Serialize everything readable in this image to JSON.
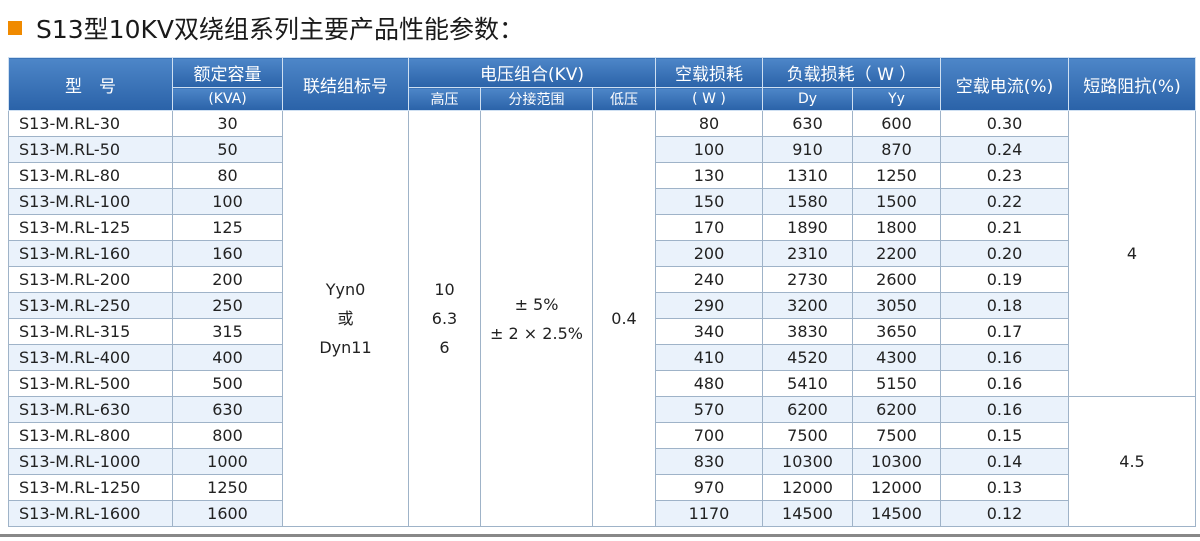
{
  "title": "S13型10KV双绕组系列主要产品性能参数：",
  "header": {
    "model": "型　号",
    "capacity": "额定容量",
    "capacity_unit": "(KVA)",
    "connection": "联结组标号",
    "voltage": "电压组合(KV)",
    "hv": "高压",
    "tap": "分接范围",
    "lv": "低压",
    "noload_loss": "空载损耗",
    "noload_loss_unit": "( W )",
    "load_loss": "负载损耗（ W ）",
    "dy": "Dy",
    "yy": "Yy",
    "noload_current": "空载电流(%)",
    "impedance": "短路阻抗(%)"
  },
  "merged": {
    "connection": [
      "Yyn0",
      "或",
      "Dyn11"
    ],
    "hv": [
      "10",
      "6.3",
      "6"
    ],
    "tap": [
      "± 5%",
      "± 2 × 2.5%"
    ],
    "lv": "0.4",
    "impedance": [
      {
        "rows": 11,
        "value": "4"
      },
      {
        "rows": 5,
        "value": "4.5"
      }
    ]
  },
  "table": {
    "rows": [
      [
        "S13-M.RL-30",
        "30",
        "80",
        "630",
        "600",
        "0.30"
      ],
      [
        "S13-M.RL-50",
        "50",
        "100",
        "910",
        "870",
        "0.24"
      ],
      [
        "S13-M.RL-80",
        "80",
        "130",
        "1310",
        "1250",
        "0.23"
      ],
      [
        "S13-M.RL-100",
        "100",
        "150",
        "1580",
        "1500",
        "0.22"
      ],
      [
        "S13-M.RL-125",
        "125",
        "170",
        "1890",
        "1800",
        "0.21"
      ],
      [
        "S13-M.RL-160",
        "160",
        "200",
        "2310",
        "2200",
        "0.20"
      ],
      [
        "S13-M.RL-200",
        "200",
        "240",
        "2730",
        "2600",
        "0.19"
      ],
      [
        "S13-M.RL-250",
        "250",
        "290",
        "3200",
        "3050",
        "0.18"
      ],
      [
        "S13-M.RL-315",
        "315",
        "340",
        "3830",
        "3650",
        "0.17"
      ],
      [
        "S13-M.RL-400",
        "400",
        "410",
        "4520",
        "4300",
        "0.16"
      ],
      [
        "S13-M.RL-500",
        "500",
        "480",
        "5410",
        "5150",
        "0.16"
      ],
      [
        "S13-M.RL-630",
        "630",
        "570",
        "6200",
        "6200",
        "0.16"
      ],
      [
        "S13-M.RL-800",
        "800",
        "700",
        "7500",
        "7500",
        "0.15"
      ],
      [
        "S13-M.RL-1000",
        "1000",
        "830",
        "10300",
        "10300",
        "0.14"
      ],
      [
        "S13-M.RL-1250",
        "1250",
        "970",
        "12000",
        "12000",
        "0.13"
      ],
      [
        "S13-M.RL-1600",
        "1600",
        "1170",
        "14500",
        "14500",
        "0.12"
      ]
    ]
  }
}
